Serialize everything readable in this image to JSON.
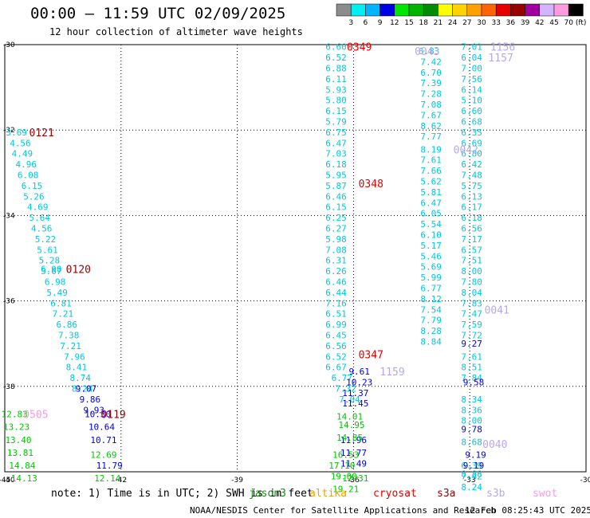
{
  "header": {
    "title": "00:00 — 11:59 UTC 02/09/2025",
    "subtitle": "12 hour collection of altimeter wave heights"
  },
  "footer": {
    "note": "note: 1) Time is in UTC; 2) SWH is in feet",
    "credit": "NOAA/NESDIS Center for Satellite Applications and Research",
    "generated": "12 Feb 08:25:43 UTC 2025"
  },
  "missions": [
    {
      "name": "jason3",
      "color": "#1a8a1a"
    },
    {
      "name": "altika",
      "color": "#f2a000"
    },
    {
      "name": "cryosat",
      "color": "#e60000"
    },
    {
      "name": "s3a",
      "color": "#990000"
    },
    {
      "name": "s3b",
      "color": "#b8a8e8"
    },
    {
      "name": "swot",
      "color": "#f59ce0"
    }
  ],
  "colorbar": {
    "unit": "(ft)",
    "labels": [
      "3",
      "6",
      "9",
      "12",
      "15",
      "18",
      "21",
      "24",
      "27",
      "30",
      "33",
      "36",
      "39",
      "42",
      "45",
      "70"
    ],
    "colors": [
      "#8c8c8c",
      "#00f0f0",
      "#00b4ff",
      "#0000e6",
      "#00e600",
      "#00b400",
      "#008c00",
      "#ffff00",
      "#ffd200",
      "#ffa000",
      "#ff6400",
      "#e60000",
      "#990000",
      "#a000a0",
      "#d2b4ff",
      "#ff9ce0",
      "#000000"
    ]
  },
  "chart_data": {
    "type": "scatter",
    "title": "00:00 — 11:59 UTC 02/09/2025",
    "xlim": [
      -45,
      -30
    ],
    "ylim": [
      -40,
      -30
    ],
    "x_ticks": [
      -45,
      -42,
      -39,
      -36,
      -33,
      -30
    ],
    "y_ticks": [
      -30,
      -32,
      -34,
      -36,
      -38,
      -40
    ],
    "x_tick_labels": [
      "-45",
      "-42",
      "-39",
      "-36",
      "-33",
      "-30"
    ],
    "y_tick_labels": [
      "-30",
      "-32",
      "-34",
      "-36",
      "-38",
      "-40"
    ],
    "grid": true,
    "time_labels": [
      {
        "text": "0349",
        "lon": -35.85,
        "lat": -30.05,
        "color": "#e60000"
      },
      {
        "text": "0348",
        "lon": -35.55,
        "lat": -33.25,
        "color": "#e60000"
      },
      {
        "text": "0347",
        "lon": -35.55,
        "lat": -37.25,
        "color": "#e60000"
      },
      {
        "text": "0121",
        "lon": -44.05,
        "lat": -32.05,
        "color": "#990000"
      },
      {
        "text": "0120",
        "lon": -43.1,
        "lat": -35.25,
        "color": "#990000"
      },
      {
        "text": "0119",
        "lon": -42.2,
        "lat": -38.65,
        "color": "#990000"
      },
      {
        "text": "1156",
        "lon": -32.15,
        "lat": -30.05,
        "color": "#b8a8e8"
      },
      {
        "text": "1157",
        "lon": -32.2,
        "lat": -30.3,
        "color": "#b8a8e8"
      },
      {
        "text": "1159",
        "lon": -35.0,
        "lat": -37.65,
        "color": "#b8a8e8"
      },
      {
        "text": "0043",
        "lon": -34.1,
        "lat": -30.15,
        "color": "#b8a8e8"
      },
      {
        "text": "0042",
        "lon": -33.1,
        "lat": -32.45,
        "color": "#b8a8e8"
      },
      {
        "text": "0041",
        "lon": -32.3,
        "lat": -36.2,
        "color": "#b8a8e8"
      },
      {
        "text": "0040",
        "lon": -32.35,
        "lat": -39.35,
        "color": "#b8a8e8"
      },
      {
        "text": "0505",
        "lon": -44.2,
        "lat": -38.65,
        "color": "#f59ce0"
      }
    ],
    "series": [
      {
        "points": [
          [
            -44.7,
            -32.05,
            "3.69"
          ],
          [
            -44.6,
            -32.3,
            "4.56"
          ],
          [
            -44.55,
            -32.55,
            "4.49"
          ],
          [
            -44.45,
            -32.8,
            "4.96"
          ],
          [
            -44.4,
            -33.05,
            "6.08"
          ],
          [
            -44.3,
            -33.3,
            "6.15"
          ],
          [
            -44.25,
            -33.55,
            "5.26"
          ],
          [
            -44.15,
            -33.8,
            "4.69"
          ],
          [
            -44.1,
            -34.05,
            "5.64"
          ],
          [
            -44.05,
            -34.3,
            "4.56"
          ],
          [
            -43.95,
            -34.55,
            "5.22"
          ],
          [
            -43.9,
            -34.8,
            "5.61"
          ],
          [
            -43.85,
            -35.05,
            "5.28"
          ],
          [
            -43.8,
            -35.3,
            "5.67"
          ],
          [
            -43.8,
            -35.25,
            "6.90"
          ],
          [
            -43.7,
            -35.55,
            "6.98"
          ],
          [
            -43.65,
            -35.8,
            "5.49"
          ],
          [
            -43.55,
            -36.05,
            "6.81"
          ],
          [
            -43.5,
            -36.3,
            "7.21"
          ],
          [
            -43.4,
            -36.55,
            "6.86"
          ],
          [
            -43.35,
            -36.8,
            "7.38"
          ],
          [
            -43.3,
            -37.05,
            "7.21"
          ],
          [
            -43.2,
            -37.3,
            "7.96"
          ],
          [
            -43.15,
            -37.55,
            "8.41"
          ],
          [
            -43.05,
            -37.8,
            "8.74"
          ],
          [
            -43.0,
            -38.05,
            "8.24"
          ],
          [
            -36.45,
            -30.05,
            "6.60"
          ],
          [
            -36.45,
            -30.3,
            "6.52"
          ],
          [
            -36.45,
            -30.55,
            "6.88"
          ],
          [
            -36.45,
            -30.8,
            "6.11"
          ],
          [
            -36.45,
            -31.05,
            "5.93"
          ],
          [
            -36.45,
            -31.3,
            "5.80"
          ],
          [
            -36.45,
            -31.55,
            "6.15"
          ],
          [
            -36.45,
            -31.8,
            "5.79"
          ],
          [
            -36.45,
            -32.05,
            "6.75"
          ],
          [
            -36.45,
            -32.3,
            "6.47"
          ],
          [
            -36.45,
            -32.55,
            "7.03"
          ],
          [
            -36.45,
            -32.8,
            "6.18"
          ],
          [
            -36.45,
            -33.05,
            "5.95"
          ],
          [
            -36.45,
            -33.3,
            "5.87"
          ],
          [
            -36.45,
            -33.55,
            "6.46"
          ],
          [
            -36.45,
            -33.8,
            "6.15"
          ],
          [
            -36.45,
            -34.05,
            "6.25"
          ],
          [
            -36.45,
            -34.3,
            "6.27"
          ],
          [
            -36.45,
            -34.55,
            "5.98"
          ],
          [
            -36.45,
            -34.8,
            "7.08"
          ],
          [
            -36.45,
            -35.05,
            "6.31"
          ],
          [
            -36.45,
            -35.3,
            "6.26"
          ],
          [
            -36.45,
            -35.55,
            "6.46"
          ],
          [
            -36.45,
            -35.8,
            "6.44"
          ],
          [
            -36.45,
            -36.05,
            "7.16"
          ],
          [
            -36.45,
            -36.3,
            "6.51"
          ],
          [
            -36.45,
            -36.55,
            "6.99"
          ],
          [
            -36.45,
            -36.8,
            "6.45"
          ],
          [
            -36.45,
            -37.05,
            "6.56"
          ],
          [
            -36.45,
            -37.3,
            "6.52"
          ],
          [
            -36.45,
            -37.55,
            "6.67"
          ],
          [
            -36.3,
            -37.8,
            "6.77"
          ],
          [
            -36.2,
            -38.05,
            "7.32"
          ],
          [
            -36.1,
            -38.3,
            "7.04"
          ],
          [
            -34.05,
            -30.15,
            "6.83"
          ],
          [
            -34.0,
            -30.4,
            "7.42"
          ],
          [
            -34.0,
            -30.65,
            "6.70"
          ],
          [
            -34.0,
            -30.9,
            "7.39"
          ],
          [
            -34.0,
            -31.15,
            "7.28"
          ],
          [
            -34.0,
            -31.4,
            "7.08"
          ],
          [
            -34.0,
            -31.65,
            "7.67"
          ],
          [
            -34.0,
            -31.9,
            "8.62"
          ],
          [
            -34.0,
            -32.15,
            "7.77"
          ],
          [
            -34.0,
            -32.45,
            "8.19"
          ],
          [
            -34.0,
            -32.7,
            "7.61"
          ],
          [
            -34.0,
            -32.95,
            "7.66"
          ],
          [
            -34.0,
            -33.2,
            "5.62"
          ],
          [
            -34.0,
            -33.45,
            "5.81"
          ],
          [
            -34.0,
            -33.7,
            "6.47"
          ],
          [
            -34.0,
            -33.95,
            "6.05"
          ],
          [
            -34.0,
            -34.2,
            "5.54"
          ],
          [
            -34.0,
            -34.45,
            "6.10"
          ],
          [
            -34.0,
            -34.7,
            "5.17"
          ],
          [
            -34.0,
            -34.95,
            "5.46"
          ],
          [
            -34.0,
            -35.2,
            "5.69"
          ],
          [
            -34.0,
            -35.45,
            "5.99"
          ],
          [
            -34.0,
            -35.7,
            "6.77"
          ],
          [
            -34.0,
            -35.95,
            "8.12"
          ],
          [
            -34.0,
            -36.2,
            "7.54"
          ],
          [
            -34.0,
            -36.45,
            "7.79"
          ],
          [
            -34.0,
            -36.7,
            "8.28"
          ],
          [
            -34.0,
            -36.95,
            "8.84"
          ],
          [
            -32.95,
            -30.05,
            "7.01"
          ],
          [
            -32.95,
            -30.3,
            "6.04"
          ],
          [
            -32.95,
            -30.55,
            "7.00"
          ],
          [
            -32.95,
            -30.8,
            "7.56"
          ],
          [
            -32.95,
            -31.05,
            "6.14"
          ],
          [
            -32.95,
            -31.3,
            "5.10"
          ],
          [
            -32.95,
            -31.55,
            "6.60"
          ],
          [
            -32.95,
            -31.8,
            "6.68"
          ],
          [
            -32.95,
            -32.05,
            "6.35"
          ],
          [
            -32.95,
            -32.3,
            "6.69"
          ],
          [
            -32.95,
            -32.55,
            "6.80"
          ],
          [
            -32.95,
            -32.8,
            "6.42"
          ],
          [
            -32.95,
            -33.05,
            "7.48"
          ],
          [
            -32.95,
            -33.3,
            "5.75"
          ],
          [
            -32.95,
            -33.55,
            "6.13"
          ],
          [
            -32.95,
            -33.8,
            "6.17"
          ],
          [
            -32.95,
            -34.05,
            "6.18"
          ],
          [
            -32.95,
            -34.3,
            "6.56"
          ],
          [
            -32.95,
            -34.55,
            "7.17"
          ],
          [
            -32.95,
            -34.8,
            "6.57"
          ],
          [
            -32.95,
            -35.05,
            "7.51"
          ],
          [
            -32.95,
            -35.3,
            "8.00"
          ],
          [
            -32.95,
            -35.55,
            "7.80"
          ],
          [
            -32.95,
            -35.8,
            "8.04"
          ],
          [
            -32.95,
            -36.05,
            "7.83"
          ],
          [
            -32.95,
            -36.3,
            "7.47"
          ],
          [
            -32.95,
            -36.55,
            "7.59"
          ],
          [
            -32.95,
            -36.8,
            "7.72"
          ],
          [
            -32.95,
            -37.3,
            "7.61"
          ],
          [
            -32.95,
            -37.55,
            "8.51"
          ],
          [
            -32.95,
            -37.8,
            "7.84"
          ],
          [
            -32.95,
            -38.3,
            "8.34"
          ],
          [
            -32.95,
            -38.55,
            "8.36"
          ],
          [
            -32.95,
            -38.8,
            "8.00"
          ],
          [
            -32.95,
            -39.3,
            "8.68"
          ],
          [
            -32.95,
            -39.85,
            "6.39"
          ],
          [
            -32.95,
            -40.1,
            "7.42"
          ],
          [
            -32.95,
            -40.35,
            "8.24"
          ],
          [
            -32.95,
            -40.05,
            "8.88"
          ]
        ]
      },
      {
        "points": [
          [
            -42.9,
            -38.05,
            "9.07"
          ],
          [
            -42.8,
            -38.3,
            "9.86"
          ],
          [
            -42.7,
            -38.55,
            "9.93"
          ],
          [
            -42.6,
            -38.65,
            "10.30"
          ],
          [
            -42.5,
            -38.95,
            "10.64"
          ],
          [
            -42.45,
            -39.25,
            "10.71"
          ],
          [
            -42.3,
            -39.85,
            "11.79"
          ],
          [
            -35.85,
            -37.65,
            "9.61"
          ],
          [
            -35.85,
            -37.9,
            "10.23"
          ],
          [
            -35.95,
            -38.15,
            "11.37"
          ],
          [
            -35.95,
            -38.4,
            "11.45"
          ],
          [
            -36.0,
            -39.25,
            "11.96"
          ],
          [
            -36.0,
            -39.55,
            "11.77"
          ],
          [
            -36.0,
            -39.8,
            "11.49"
          ],
          [
            -32.95,
            -37.0,
            "9.27"
          ],
          [
            -32.9,
            -37.9,
            "9.58"
          ],
          [
            -32.95,
            -39.0,
            "9.78"
          ],
          [
            -32.85,
            -39.6,
            "9.19"
          ],
          [
            -32.9,
            -39.85,
            "9.19"
          ]
        ]
      },
      {
        "points": [
          [
            -44.75,
            -38.65,
            "12.83"
          ],
          [
            -44.7,
            -38.95,
            "13.23"
          ],
          [
            -44.65,
            -39.25,
            "13.40"
          ],
          [
            -44.6,
            -39.55,
            "13.81"
          ],
          [
            -44.55,
            -39.85,
            "14.84"
          ],
          [
            -44.5,
            -40.15,
            "14.13"
          ],
          [
            -42.45,
            -39.6,
            "12.69"
          ],
          [
            -42.35,
            -40.15,
            "12.14"
          ],
          [
            -36.2,
            -39.6,
            "16.53"
          ],
          [
            -36.3,
            -39.85,
            "17.10"
          ],
          [
            -36.25,
            -40.1,
            "19.00"
          ],
          [
            -36.2,
            -40.4,
            "19.21"
          ],
          [
            -36.1,
            -38.7,
            "14.01"
          ],
          [
            -36.05,
            -38.9,
            "14.95"
          ],
          [
            -36.1,
            -39.2,
            "14.85"
          ],
          [
            -35.95,
            -40.15,
            "12.31"
          ]
        ]
      }
    ],
    "series_colors": [
      "#00c8dc",
      "#0000e6",
      "#00c800"
    ]
  }
}
